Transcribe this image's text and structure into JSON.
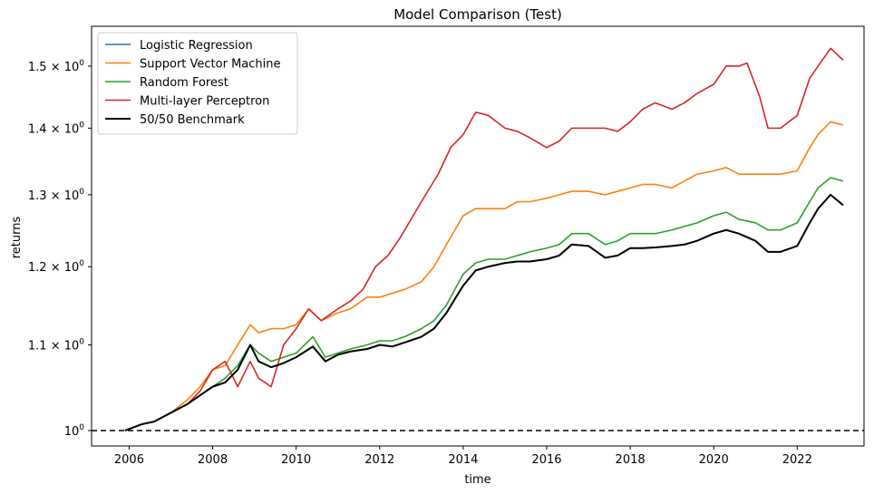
{
  "chart_data": {
    "type": "line",
    "title": "Model Comparison (Test)",
    "xlabel": "time",
    "ylabel": "returns",
    "yscale": "log",
    "xlim": [
      2005.1,
      2023.6
    ],
    "ylim": [
      0.983,
      1.568
    ],
    "grid": false,
    "legend_position": "top-left",
    "x_ticks": [
      2006,
      2008,
      2010,
      2012,
      2014,
      2016,
      2018,
      2020,
      2022
    ],
    "x_tick_labels": [
      "2006",
      "2008",
      "2010",
      "2012",
      "2014",
      "2016",
      "2018",
      "2020",
      "2022"
    ],
    "y_ticks": [
      1.0,
      1.1,
      1.2,
      1.3,
      1.4,
      1.5
    ],
    "y_tick_labels": [
      {
        "mantissa": "10",
        "exponent": "0"
      },
      {
        "mantissa": "1.1 × 10",
        "exponent": "0"
      },
      {
        "mantissa": "1.2 × 10",
        "exponent": "0"
      },
      {
        "mantissa": "1.3 × 10",
        "exponent": "0"
      },
      {
        "mantissa": "1.4 × 10",
        "exponent": "0"
      },
      {
        "mantissa": "1.5 × 10",
        "exponent": "0"
      }
    ],
    "reference_line": {
      "y": 1.0,
      "style": "dashed",
      "color": "#000000"
    },
    "series": [
      {
        "name": "Logistic Regression",
        "color": "#1f77b4",
        "x": [
          2005.9,
          2006.3,
          2006.6,
          2007.0,
          2007.4,
          2007.7,
          2008.0,
          2008.3,
          2008.6,
          2008.9,
          2009.1,
          2009.4,
          2009.7,
          2010.0,
          2010.4,
          2010.7,
          2011.0,
          2011.3,
          2011.7,
          2012.0,
          2012.3,
          2012.6,
          2013.0,
          2013.3,
          2013.6,
          2014.0,
          2014.3,
          2014.6,
          2015.0,
          2015.3,
          2015.6,
          2016.0,
          2016.3,
          2016.6,
          2017.0,
          2017.4,
          2017.7,
          2018.0,
          2018.3,
          2018.6,
          2019.0,
          2019.3,
          2019.6,
          2020.0,
          2020.3,
          2020.6,
          2021.0,
          2021.3,
          2021.6,
          2022.0,
          2022.3,
          2022.5,
          2022.8,
          2023.1
        ],
        "y": [
          1.0,
          1.007,
          1.01,
          1.02,
          1.03,
          1.04,
          1.05,
          1.055,
          1.07,
          1.1,
          1.08,
          1.073,
          1.078,
          1.085,
          1.098,
          1.08,
          1.088,
          1.092,
          1.095,
          1.1,
          1.098,
          1.103,
          1.11,
          1.12,
          1.14,
          1.175,
          1.195,
          1.2,
          1.205,
          1.207,
          1.207,
          1.21,
          1.215,
          1.23,
          1.228,
          1.212,
          1.215,
          1.225,
          1.225,
          1.226,
          1.228,
          1.23,
          1.235,
          1.245,
          1.25,
          1.245,
          1.235,
          1.22,
          1.22,
          1.228,
          1.26,
          1.28,
          1.3,
          1.285
        ]
      },
      {
        "name": "Support Vector Machine",
        "color": "#ff7f0e",
        "x": [
          2005.9,
          2006.3,
          2006.6,
          2007.0,
          2007.4,
          2007.7,
          2008.0,
          2008.3,
          2008.6,
          2008.9,
          2009.1,
          2009.4,
          2009.7,
          2010.0,
          2010.3,
          2010.6,
          2011.0,
          2011.3,
          2011.7,
          2012.0,
          2012.3,
          2012.6,
          2013.0,
          2013.3,
          2013.6,
          2014.0,
          2014.3,
          2014.6,
          2015.0,
          2015.3,
          2015.6,
          2016.0,
          2016.3,
          2016.6,
          2017.0,
          2017.4,
          2017.7,
          2018.0,
          2018.3,
          2018.6,
          2019.0,
          2019.3,
          2019.6,
          2020.0,
          2020.3,
          2020.6,
          2021.0,
          2021.3,
          2021.6,
          2022.0,
          2022.3,
          2022.5,
          2022.8,
          2023.1
        ],
        "y": [
          1.0,
          1.007,
          1.01,
          1.02,
          1.035,
          1.05,
          1.07,
          1.075,
          1.1,
          1.125,
          1.115,
          1.12,
          1.12,
          1.125,
          1.145,
          1.13,
          1.14,
          1.145,
          1.16,
          1.16,
          1.165,
          1.17,
          1.18,
          1.2,
          1.23,
          1.27,
          1.28,
          1.28,
          1.28,
          1.29,
          1.29,
          1.295,
          1.3,
          1.305,
          1.305,
          1.3,
          1.305,
          1.31,
          1.315,
          1.315,
          1.31,
          1.32,
          1.33,
          1.335,
          1.34,
          1.33,
          1.33,
          1.33,
          1.33,
          1.335,
          1.37,
          1.39,
          1.41,
          1.405
        ]
      },
      {
        "name": "Random Forest",
        "color": "#2ca02c",
        "x": [
          2005.9,
          2006.3,
          2006.6,
          2007.0,
          2007.4,
          2007.7,
          2008.0,
          2008.3,
          2008.6,
          2008.9,
          2009.1,
          2009.4,
          2009.7,
          2010.0,
          2010.4,
          2010.7,
          2011.0,
          2011.3,
          2011.7,
          2012.0,
          2012.3,
          2012.6,
          2013.0,
          2013.3,
          2013.6,
          2014.0,
          2014.3,
          2014.6,
          2015.0,
          2015.3,
          2015.6,
          2016.0,
          2016.3,
          2016.6,
          2017.0,
          2017.4,
          2017.7,
          2018.0,
          2018.3,
          2018.6,
          2019.0,
          2019.3,
          2019.6,
          2020.0,
          2020.3,
          2020.6,
          2021.0,
          2021.3,
          2021.6,
          2022.0,
          2022.3,
          2022.5,
          2022.8,
          2023.1
        ],
        "y": [
          1.0,
          1.007,
          1.01,
          1.02,
          1.03,
          1.04,
          1.05,
          1.06,
          1.075,
          1.1,
          1.09,
          1.08,
          1.085,
          1.09,
          1.11,
          1.085,
          1.09,
          1.095,
          1.1,
          1.105,
          1.105,
          1.11,
          1.12,
          1.13,
          1.15,
          1.19,
          1.205,
          1.21,
          1.21,
          1.215,
          1.22,
          1.225,
          1.23,
          1.245,
          1.245,
          1.23,
          1.235,
          1.245,
          1.245,
          1.245,
          1.25,
          1.255,
          1.26,
          1.27,
          1.275,
          1.265,
          1.26,
          1.25,
          1.25,
          1.26,
          1.29,
          1.31,
          1.325,
          1.32
        ]
      },
      {
        "name": "Multi-layer Perceptron",
        "color": "#d62728",
        "x": [
          2005.9,
          2006.3,
          2006.6,
          2007.0,
          2007.4,
          2007.7,
          2008.0,
          2008.3,
          2008.6,
          2008.9,
          2009.1,
          2009.4,
          2009.7,
          2010.0,
          2010.3,
          2010.6,
          2011.0,
          2011.3,
          2011.6,
          2011.9,
          2012.2,
          2012.5,
          2012.8,
          2013.1,
          2013.4,
          2013.7,
          2014.0,
          2014.3,
          2014.6,
          2015.0,
          2015.3,
          2015.6,
          2016.0,
          2016.3,
          2016.6,
          2017.0,
          2017.4,
          2017.7,
          2018.0,
          2018.3,
          2018.6,
          2019.0,
          2019.3,
          2019.6,
          2020.0,
          2020.3,
          2020.6,
          2020.8,
          2021.1,
          2021.3,
          2021.6,
          2022.0,
          2022.3,
          2022.5,
          2022.8,
          2023.1
        ],
        "y": [
          1.0,
          1.007,
          1.01,
          1.02,
          1.03,
          1.045,
          1.07,
          1.08,
          1.05,
          1.08,
          1.06,
          1.05,
          1.1,
          1.12,
          1.145,
          1.13,
          1.145,
          1.155,
          1.17,
          1.2,
          1.215,
          1.24,
          1.27,
          1.3,
          1.33,
          1.37,
          1.39,
          1.425,
          1.42,
          1.4,
          1.395,
          1.385,
          1.37,
          1.38,
          1.4,
          1.4,
          1.4,
          1.395,
          1.41,
          1.43,
          1.44,
          1.43,
          1.44,
          1.455,
          1.47,
          1.5,
          1.5,
          1.505,
          1.45,
          1.4,
          1.4,
          1.42,
          1.48,
          1.5,
          1.53,
          1.51
        ]
      },
      {
        "name": "50/50 Benchmark",
        "color": "#000000",
        "x": [
          2005.9,
          2006.3,
          2006.6,
          2007.0,
          2007.4,
          2007.7,
          2008.0,
          2008.3,
          2008.6,
          2008.9,
          2009.1,
          2009.4,
          2009.7,
          2010.0,
          2010.4,
          2010.7,
          2011.0,
          2011.3,
          2011.7,
          2012.0,
          2012.3,
          2012.6,
          2013.0,
          2013.3,
          2013.6,
          2014.0,
          2014.3,
          2014.6,
          2015.0,
          2015.3,
          2015.6,
          2016.0,
          2016.3,
          2016.6,
          2017.0,
          2017.4,
          2017.7,
          2018.0,
          2018.3,
          2018.6,
          2019.0,
          2019.3,
          2019.6,
          2020.0,
          2020.3,
          2020.6,
          2021.0,
          2021.3,
          2021.6,
          2022.0,
          2022.3,
          2022.5,
          2022.8,
          2023.1
        ],
        "y": [
          1.0,
          1.007,
          1.01,
          1.02,
          1.03,
          1.04,
          1.05,
          1.055,
          1.07,
          1.1,
          1.08,
          1.073,
          1.078,
          1.085,
          1.098,
          1.08,
          1.088,
          1.092,
          1.095,
          1.1,
          1.098,
          1.103,
          1.11,
          1.12,
          1.14,
          1.175,
          1.195,
          1.2,
          1.205,
          1.207,
          1.207,
          1.21,
          1.215,
          1.23,
          1.228,
          1.212,
          1.215,
          1.225,
          1.225,
          1.226,
          1.228,
          1.23,
          1.235,
          1.245,
          1.25,
          1.245,
          1.235,
          1.22,
          1.22,
          1.228,
          1.26,
          1.28,
          1.3,
          1.285
        ]
      }
    ]
  }
}
